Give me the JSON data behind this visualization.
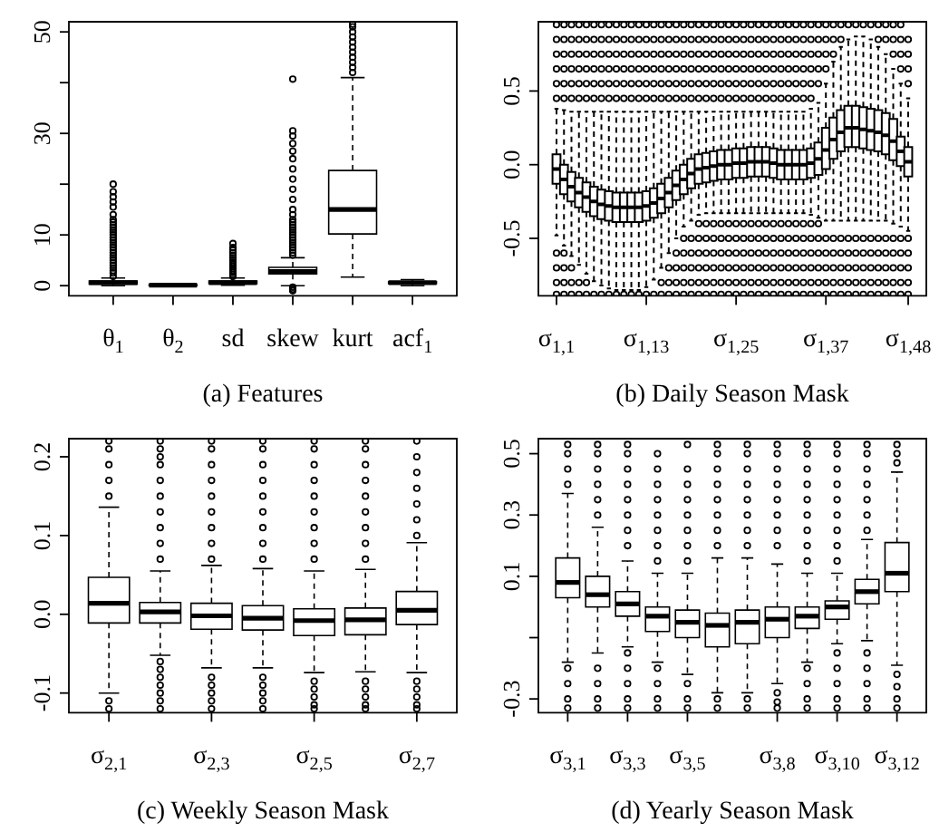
{
  "chart_data": [
    {
      "type": "box",
      "title": "(a) Features",
      "categories": [
        "θ$_{1}$",
        "θ$_{2}$",
        "sd",
        "skew",
        "kurt",
        "acf$_{1}$"
      ],
      "ylim": [
        -2,
        52
      ],
      "yticks": [
        0,
        10,
        {
          "value": 20,
          "label": null
        },
        30,
        {
          "value": 40,
          "label": null
        },
        50
      ],
      "boxes": [
        {
          "low": 0,
          "q1": 0.3,
          "median": 0.6,
          "q3": 0.9,
          "high": 1.5,
          "outliers": [
            1.8,
            2.5,
            3,
            3.5,
            4,
            4.5,
            5,
            5.5,
            6,
            6.5,
            7,
            7.5,
            8,
            8.5,
            9,
            9.5,
            10,
            10.5,
            11,
            11.5,
            12,
            12.5,
            13,
            14,
            15.5,
            16.5,
            17.5,
            18.5,
            20
          ]
        },
        {
          "low": 0,
          "q1": 0.05,
          "median": 0.1,
          "q3": 0.15,
          "high": 0.3
        },
        {
          "low": 0.1,
          "q1": 0.4,
          "median": 0.6,
          "q3": 0.9,
          "high": 1.5,
          "outliers": [
            1.8,
            2.2,
            2.6,
            3,
            3.4,
            3.8,
            4.2,
            4.6,
            5,
            5.5,
            6,
            6.5,
            7,
            7.5,
            8.3
          ]
        },
        {
          "low": 0,
          "q1": 2.3,
          "median": 2.8,
          "q3": 3.6,
          "high": 5.5,
          "outliers": [
            -0.3,
            -0.7,
            -1,
            6,
            6.5,
            7,
            7.5,
            8,
            8.5,
            9,
            9.5,
            10,
            10.5,
            11,
            11.5,
            12,
            12.5,
            13,
            14,
            15,
            17,
            19,
            21,
            23,
            25,
            26.5,
            28,
            29.5,
            30.5,
            40.7
          ]
        },
        {
          "low": 1.7,
          "q1": 10.2,
          "median": 15,
          "q3": 22.7,
          "high": 41,
          "outliers": [
            42,
            43,
            44,
            45,
            46,
            47,
            48,
            49,
            50,
            51,
            51.5
          ]
        },
        {
          "low": 0,
          "q1": 0.4,
          "median": 0.6,
          "q3": 0.8,
          "high": 1.2
        }
      ]
    },
    {
      "type": "box",
      "title": "(b) Daily Season Mask",
      "categories": [
        "σ$_{1,1}$",
        null,
        null,
        null,
        null,
        null,
        null,
        null,
        null,
        null,
        null,
        null,
        "σ$_{1,13}$",
        null,
        null,
        null,
        null,
        null,
        null,
        null,
        null,
        null,
        null,
        null,
        "σ$_{1,25}$",
        null,
        null,
        null,
        null,
        null,
        null,
        null,
        null,
        null,
        null,
        null,
        "σ$_{1,37}$",
        null,
        null,
        null,
        null,
        null,
        null,
        null,
        null,
        null,
        null,
        "σ$_{1,48}$"
      ],
      "ylim": [
        -0.89,
        0.97
      ],
      "yticks": [
        -0.5,
        {
          "value": 0,
          "label": "0.0"
        },
        0.5
      ],
      "boxes": [
        {
          "low": -0.48,
          "q1": -0.13,
          "median": -0.03,
          "q3": 0.07,
          "high": 0.38,
          "outliers": [
            0.45,
            0.55,
            0.65,
            0.75,
            0.85,
            0.95,
            -0.6,
            -0.7,
            -0.8,
            -0.88
          ]
        },
        {
          "low": -0.55,
          "q1": -0.2,
          "median": -0.1,
          "q3": 0,
          "high": 0.37,
          "outliers": [
            0.45,
            0.55,
            0.65,
            0.75,
            0.85,
            0.95,
            -0.6,
            -0.7,
            -0.8,
            -0.88
          ]
        },
        {
          "low": -0.62,
          "q1": -0.25,
          "median": -0.15,
          "q3": -0.05,
          "high": 0.36,
          "outliers": [
            0.45,
            0.55,
            0.65,
            0.75,
            0.85,
            0.95,
            -0.7,
            -0.8,
            -0.88
          ]
        },
        {
          "low": -0.68,
          "q1": -0.29,
          "median": -0.19,
          "q3": -0.09,
          "high": 0.36,
          "outliers": [
            0.45,
            0.55,
            0.65,
            0.75,
            0.85,
            0.95,
            -0.8,
            -0.88
          ]
        },
        {
          "low": -0.74,
          "q1": -0.32,
          "median": -0.22,
          "q3": -0.12,
          "high": 0.36,
          "outliers": [
            0.45,
            0.55,
            0.65,
            0.75,
            0.85,
            0.95,
            -0.8,
            -0.88
          ]
        },
        {
          "low": -0.79,
          "q1": -0.35,
          "median": -0.25,
          "q3": -0.15,
          "high": 0.36,
          "outliers": [
            0.45,
            0.55,
            0.65,
            0.75,
            0.85,
            0.95,
            -0.88
          ]
        },
        {
          "low": -0.82,
          "q1": -0.37,
          "median": -0.27,
          "q3": -0.17,
          "high": 0.36,
          "outliers": [
            0.45,
            0.55,
            0.65,
            0.75,
            0.85,
            0.95,
            -0.88
          ]
        },
        {
          "low": -0.84,
          "q1": -0.38,
          "median": -0.28,
          "q3": -0.18,
          "high": 0.36,
          "outliers": [
            0.45,
            0.55,
            0.65,
            0.75,
            0.85,
            0.95,
            -0.88
          ]
        },
        {
          "low": -0.85,
          "q1": -0.39,
          "median": -0.29,
          "q3": -0.19,
          "high": 0.36,
          "outliers": [
            0.45,
            0.55,
            0.65,
            0.75,
            0.85,
            0.95,
            -0.88
          ]
        },
        {
          "low": -0.85,
          "q1": -0.39,
          "median": -0.29,
          "q3": -0.19,
          "high": 0.36,
          "outliers": [
            0.45,
            0.55,
            0.65,
            0.75,
            0.85,
            0.95,
            -0.88
          ]
        },
        {
          "low": -0.85,
          "q1": -0.39,
          "median": -0.29,
          "q3": -0.19,
          "high": 0.36,
          "outliers": [
            0.45,
            0.55,
            0.65,
            0.75,
            0.85,
            0.95,
            -0.88
          ]
        },
        {
          "low": -0.85,
          "q1": -0.39,
          "median": -0.29,
          "q3": -0.19,
          "high": 0.36,
          "outliers": [
            0.45,
            0.55,
            0.65,
            0.75,
            0.85,
            0.95,
            -0.88
          ]
        },
        {
          "low": -0.83,
          "q1": -0.38,
          "median": -0.28,
          "q3": -0.18,
          "high": 0.36,
          "outliers": [
            0.45,
            0.55,
            0.65,
            0.75,
            0.85,
            0.95,
            -0.88
          ]
        },
        {
          "low": -0.78,
          "q1": -0.36,
          "median": -0.26,
          "q3": -0.16,
          "high": 0.36,
          "outliers": [
            0.45,
            0.55,
            0.65,
            0.75,
            0.85,
            0.95,
            -0.88
          ]
        },
        {
          "low": -0.7,
          "q1": -0.33,
          "median": -0.23,
          "q3": -0.13,
          "high": 0.36,
          "outliers": [
            0.45,
            0.55,
            0.65,
            0.75,
            0.85,
            0.95,
            -0.8,
            -0.88
          ]
        },
        {
          "low": -0.6,
          "q1": -0.29,
          "median": -0.19,
          "q3": -0.09,
          "high": 0.36,
          "outliers": [
            0.45,
            0.55,
            0.65,
            0.75,
            0.85,
            0.95,
            -0.7,
            -0.8,
            -0.88
          ]
        },
        {
          "low": -0.5,
          "q1": -0.24,
          "median": -0.14,
          "q3": -0.04,
          "high": 0.36,
          "outliers": [
            0.45,
            0.55,
            0.65,
            0.75,
            0.85,
            0.95,
            -0.6,
            -0.7,
            -0.8,
            -0.88
          ]
        },
        {
          "low": -0.42,
          "q1": -0.2,
          "median": -0.1,
          "q3": 0,
          "high": 0.36,
          "outliers": [
            0.45,
            0.55,
            0.65,
            0.75,
            0.85,
            0.95,
            -0.5,
            -0.6,
            -0.7,
            -0.8,
            -0.88
          ]
        },
        {
          "low": -0.38,
          "q1": -0.16,
          "median": -0.06,
          "q3": 0.04,
          "high": 0.36,
          "outliers": [
            0.45,
            0.55,
            0.65,
            0.75,
            0.85,
            0.95,
            -0.5,
            -0.6,
            -0.7,
            -0.8,
            -0.88
          ]
        },
        {
          "low": -0.34,
          "q1": -0.13,
          "median": -0.03,
          "q3": 0.07,
          "high": 0.36,
          "outliers": [
            0.45,
            0.55,
            0.65,
            0.75,
            0.85,
            0.95,
            -0.4,
            -0.5,
            -0.6,
            -0.7,
            -0.8,
            -0.88
          ]
        },
        {
          "low": -0.33,
          "q1": -0.12,
          "median": -0.02,
          "q3": 0.08,
          "high": 0.36,
          "outliers": [
            0.45,
            0.55,
            0.65,
            0.75,
            0.85,
            0.95,
            -0.4,
            -0.5,
            -0.6,
            -0.7,
            -0.8,
            -0.88
          ]
        },
        {
          "low": -0.33,
          "q1": -0.11,
          "median": -0.01,
          "q3": 0.09,
          "high": 0.36,
          "outliers": [
            0.45,
            0.55,
            0.65,
            0.75,
            0.85,
            0.95,
            -0.4,
            -0.5,
            -0.6,
            -0.7,
            -0.8,
            -0.88
          ]
        },
        {
          "low": -0.33,
          "q1": -0.1,
          "median": 0,
          "q3": 0.1,
          "high": 0.36,
          "outliers": [
            0.45,
            0.55,
            0.65,
            0.75,
            0.85,
            0.95,
            -0.4,
            -0.5,
            -0.6,
            -0.7,
            -0.8,
            -0.88
          ]
        },
        {
          "low": -0.33,
          "q1": -0.1,
          "median": 0,
          "q3": 0.1,
          "high": 0.36,
          "outliers": [
            0.45,
            0.55,
            0.65,
            0.75,
            0.85,
            0.95,
            -0.4,
            -0.5,
            -0.6,
            -0.7,
            -0.8,
            -0.88
          ]
        },
        {
          "low": -0.33,
          "q1": -0.09,
          "median": 0.01,
          "q3": 0.11,
          "high": 0.36,
          "outliers": [
            0.45,
            0.55,
            0.65,
            0.75,
            0.85,
            0.95,
            -0.4,
            -0.5,
            -0.6,
            -0.7,
            -0.8,
            -0.88
          ]
        },
        {
          "low": -0.33,
          "q1": -0.09,
          "median": 0.01,
          "q3": 0.11,
          "high": 0.36,
          "outliers": [
            0.45,
            0.55,
            0.65,
            0.75,
            0.85,
            0.95,
            -0.4,
            -0.5,
            -0.6,
            -0.7,
            -0.8,
            -0.88
          ]
        },
        {
          "low": -0.33,
          "q1": -0.08,
          "median": 0.02,
          "q3": 0.12,
          "high": 0.36,
          "outliers": [
            0.45,
            0.55,
            0.65,
            0.75,
            0.85,
            0.95,
            -0.4,
            -0.5,
            -0.6,
            -0.7,
            -0.8,
            -0.88
          ]
        },
        {
          "low": -0.33,
          "q1": -0.08,
          "median": 0.02,
          "q3": 0.12,
          "high": 0.36,
          "outliers": [
            0.45,
            0.55,
            0.65,
            0.75,
            0.85,
            0.95,
            -0.4,
            -0.5,
            -0.6,
            -0.7,
            -0.8,
            -0.88
          ]
        },
        {
          "low": -0.33,
          "q1": -0.08,
          "median": 0.02,
          "q3": 0.12,
          "high": 0.36,
          "outliers": [
            0.45,
            0.55,
            0.65,
            0.75,
            0.85,
            0.95,
            -0.4,
            -0.5,
            -0.6,
            -0.7,
            -0.8,
            -0.88
          ]
        },
        {
          "low": -0.33,
          "q1": -0.09,
          "median": 0.01,
          "q3": 0.11,
          "high": 0.36,
          "outliers": [
            0.45,
            0.55,
            0.65,
            0.75,
            0.85,
            0.95,
            -0.4,
            -0.5,
            -0.6,
            -0.7,
            -0.8,
            -0.88
          ]
        },
        {
          "low": -0.33,
          "q1": -0.1,
          "median": 0,
          "q3": 0.1,
          "high": 0.36,
          "outliers": [
            0.45,
            0.55,
            0.65,
            0.75,
            0.85,
            0.95,
            -0.4,
            -0.5,
            -0.6,
            -0.7,
            -0.8,
            -0.88
          ]
        },
        {
          "low": -0.33,
          "q1": -0.1,
          "median": 0,
          "q3": 0.1,
          "high": 0.36,
          "outliers": [
            0.45,
            0.55,
            0.65,
            0.75,
            0.85,
            0.95,
            -0.4,
            -0.5,
            -0.6,
            -0.7,
            -0.8,
            -0.88
          ]
        },
        {
          "low": -0.33,
          "q1": -0.1,
          "median": 0,
          "q3": 0.1,
          "high": 0.36,
          "outliers": [
            0.45,
            0.55,
            0.65,
            0.75,
            0.85,
            0.95,
            -0.4,
            -0.5,
            -0.6,
            -0.7,
            -0.8,
            -0.88
          ]
        },
        {
          "low": -0.33,
          "q1": -0.1,
          "median": 0,
          "q3": 0.1,
          "high": 0.36,
          "outliers": [
            0.45,
            0.55,
            0.65,
            0.75,
            0.85,
            0.95,
            -0.4,
            -0.5,
            -0.6,
            -0.7,
            -0.8,
            -0.88
          ]
        },
        {
          "low": -0.34,
          "q1": -0.09,
          "median": 0.01,
          "q3": 0.11,
          "high": 0.38,
          "outliers": [
            0.45,
            0.55,
            0.65,
            0.75,
            0.85,
            0.95,
            -0.4,
            -0.5,
            -0.6,
            -0.7,
            -0.8,
            -0.88
          ]
        },
        {
          "low": -0.36,
          "q1": -0.07,
          "median": 0.04,
          "q3": 0.15,
          "high": 0.42,
          "outliers": [
            0.55,
            0.65,
            0.75,
            0.85,
            0.95,
            -0.4,
            -0.5,
            -0.6,
            -0.7,
            -0.8,
            -0.88
          ]
        },
        {
          "low": -0.38,
          "q1": -0.03,
          "median": 0.1,
          "q3": 0.25,
          "high": 0.55,
          "outliers": [
            0.65,
            0.75,
            0.85,
            0.95,
            -0.5,
            -0.6,
            -0.7,
            -0.8,
            -0.88
          ]
        },
        {
          "low": -0.38,
          "q1": 0.04,
          "median": 0.17,
          "q3": 0.32,
          "high": 0.7,
          "outliers": [
            0.75,
            0.85,
            0.95,
            -0.5,
            -0.6,
            -0.7,
            -0.8,
            -0.88
          ]
        },
        {
          "low": -0.38,
          "q1": 0.09,
          "median": 0.22,
          "q3": 0.37,
          "high": 0.8,
          "outliers": [
            0.85,
            0.95,
            -0.5,
            -0.6,
            -0.7,
            -0.8,
            -0.88
          ]
        },
        {
          "low": -0.38,
          "q1": 0.12,
          "median": 0.25,
          "q3": 0.4,
          "high": 0.85,
          "outliers": [
            0.95,
            -0.5,
            -0.6,
            -0.7,
            -0.8,
            -0.88
          ]
        },
        {
          "low": -0.38,
          "q1": 0.12,
          "median": 0.25,
          "q3": 0.4,
          "high": 0.87,
          "outliers": [
            0.95,
            -0.5,
            -0.6,
            -0.7,
            -0.8,
            -0.88
          ]
        },
        {
          "low": -0.38,
          "q1": 0.11,
          "median": 0.24,
          "q3": 0.39,
          "high": 0.87,
          "outliers": [
            0.95,
            -0.5,
            -0.6,
            -0.7,
            -0.8,
            -0.88
          ]
        },
        {
          "low": -0.38,
          "q1": 0.1,
          "median": 0.23,
          "q3": 0.38,
          "high": 0.85,
          "outliers": [
            0.95,
            -0.5,
            -0.6,
            -0.7,
            -0.8,
            -0.88
          ]
        },
        {
          "low": -0.38,
          "q1": 0.09,
          "median": 0.22,
          "q3": 0.37,
          "high": 0.8,
          "outliers": [
            0.85,
            0.95,
            -0.5,
            -0.6,
            -0.7,
            -0.8,
            -0.88
          ]
        },
        {
          "low": -0.38,
          "q1": 0.07,
          "median": 0.2,
          "q3": 0.35,
          "high": 0.75,
          "outliers": [
            0.85,
            0.95,
            -0.5,
            -0.6,
            -0.7,
            -0.8,
            -0.88
          ]
        },
        {
          "low": -0.4,
          "q1": 0.03,
          "median": 0.16,
          "q3": 0.31,
          "high": 0.65,
          "outliers": [
            0.75,
            0.85,
            0.95,
            -0.5,
            -0.6,
            -0.7,
            -0.8,
            -0.88
          ]
        },
        {
          "low": -0.42,
          "q1": -0.01,
          "median": 0.09,
          "q3": 0.19,
          "high": 0.55,
          "outliers": [
            0.65,
            0.75,
            0.85,
            0.95,
            -0.5,
            -0.6,
            -0.7,
            -0.8,
            -0.88
          ]
        },
        {
          "low": -0.45,
          "q1": -0.08,
          "median": 0.02,
          "q3": 0.12,
          "high": 0.45,
          "outliers": [
            0.55,
            0.65,
            0.75,
            0.85,
            -0.5,
            -0.6,
            -0.7,
            -0.8,
            -0.88
          ]
        }
      ]
    },
    {
      "type": "box",
      "title": "(c) Weekly Season Mask",
      "categories": [
        "σ$_{2,1}$",
        null,
        "σ$_{2,3}$",
        null,
        "σ$_{2,5}$",
        null,
        "σ$_{2,7}$"
      ],
      "ylim": [
        -0.125,
        0.223
      ],
      "yticks": [
        -0.1,
        {
          "value": 0,
          "label": "0.0"
        },
        0.1,
        0.2
      ],
      "boxes": [
        {
          "low": -0.1,
          "q1": -0.011,
          "median": 0.014,
          "q3": 0.047,
          "high": 0.136,
          "outliers": [
            0.15,
            0.17,
            0.19,
            0.21,
            0.22,
            -0.11,
            -0.12
          ]
        },
        {
          "low": -0.052,
          "q1": -0.011,
          "median": 0.003,
          "q3": 0.015,
          "high": 0.055,
          "outliers": [
            0.07,
            0.09,
            0.11,
            0.13,
            0.15,
            0.17,
            0.19,
            0.2,
            0.21,
            0.22,
            -0.06,
            -0.07,
            -0.08,
            -0.09,
            -0.1,
            -0.11,
            -0.12
          ]
        },
        {
          "low": -0.068,
          "q1": -0.019,
          "median": -0.002,
          "q3": 0.014,
          "high": 0.062,
          "outliers": [
            0.07,
            0.09,
            0.11,
            0.13,
            0.15,
            0.17,
            0.19,
            0.21,
            0.22,
            -0.08,
            -0.09,
            -0.1,
            -0.11,
            -0.12
          ]
        },
        {
          "low": -0.068,
          "q1": -0.02,
          "median": -0.005,
          "q3": 0.011,
          "high": 0.058,
          "outliers": [
            0.07,
            0.09,
            0.11,
            0.13,
            0.15,
            0.17,
            0.19,
            0.21,
            0.22,
            -0.08,
            -0.09,
            -0.1,
            -0.11,
            -0.12
          ]
        },
        {
          "low": -0.074,
          "q1": -0.027,
          "median": -0.008,
          "q3": 0.007,
          "high": 0.055,
          "outliers": [
            0.07,
            0.09,
            0.11,
            0.13,
            0.15,
            0.17,
            0.19,
            0.21,
            0.22,
            -0.085,
            -0.095,
            -0.105,
            -0.115,
            -0.12
          ]
        },
        {
          "low": -0.073,
          "q1": -0.026,
          "median": -0.007,
          "q3": 0.008,
          "high": 0.057,
          "outliers": [
            0.07,
            0.09,
            0.11,
            0.13,
            0.15,
            0.17,
            0.19,
            0.21,
            0.22,
            -0.085,
            -0.095,
            -0.105,
            -0.115,
            -0.12
          ]
        },
        {
          "low": -0.074,
          "q1": -0.013,
          "median": 0.005,
          "q3": 0.029,
          "high": 0.091,
          "outliers": [
            0.1,
            0.12,
            0.14,
            0.16,
            0.18,
            0.2,
            0.22,
            -0.085,
            -0.095,
            -0.105,
            -0.115,
            -0.12
          ]
        }
      ]
    },
    {
      "type": "box",
      "title": "(d) Yearly Season Mask",
      "categories": [
        "σ$_{3,1}$",
        null,
        "σ$_{3,3}$",
        null,
        "σ$_{3,5}$",
        null,
        null,
        "σ$_{3,8}$",
        null,
        "σ$_{3,10}$",
        null,
        "σ$_{3,12}$"
      ],
      "ylim": [
        -0.345,
        0.549
      ],
      "yticks": [
        -0.3,
        {
          "value": -0.1,
          "label": null
        },
        0.1,
        0.3,
        0.5
      ],
      "boxes": [
        {
          "low": -0.18,
          "q1": 0.03,
          "median": 0.08,
          "q3": 0.16,
          "high": 0.37,
          "outliers": [
            0.4,
            0.45,
            0.5,
            0.53,
            -0.2,
            -0.25,
            -0.3,
            -0.33
          ]
        },
        {
          "low": -0.15,
          "q1": 0,
          "median": 0.04,
          "q3": 0.1,
          "high": 0.26,
          "outliers": [
            0.3,
            0.35,
            0.4,
            0.45,
            0.5,
            0.53,
            -0.2,
            -0.25,
            -0.3,
            -0.33
          ]
        },
        {
          "low": -0.13,
          "q1": -0.03,
          "median": 0.01,
          "q3": 0.05,
          "high": 0.15,
          "outliers": [
            0.2,
            0.25,
            0.3,
            0.35,
            0.4,
            0.45,
            0.5,
            0.53,
            -0.15,
            -0.2,
            -0.25,
            -0.3,
            -0.33
          ]
        },
        {
          "low": -0.18,
          "q1": -0.08,
          "median": -0.03,
          "q3": 0,
          "high": 0.11,
          "outliers": [
            0.15,
            0.2,
            0.25,
            0.3,
            0.35,
            0.4,
            0.45,
            0.5,
            -0.2,
            -0.25,
            -0.3,
            -0.33
          ]
        },
        {
          "low": -0.22,
          "q1": -0.1,
          "median": -0.05,
          "q3": -0.01,
          "high": 0.11,
          "outliers": [
            0.15,
            0.2,
            0.25,
            0.3,
            0.35,
            0.4,
            0.45,
            0.53,
            -0.25,
            -0.3,
            -0.33
          ]
        },
        {
          "low": -0.28,
          "q1": -0.13,
          "median": -0.06,
          "q3": -0.02,
          "high": 0.16,
          "outliers": [
            0.2,
            0.25,
            0.3,
            0.35,
            0.4,
            0.45,
            0.5,
            0.53,
            -0.3,
            -0.33
          ]
        },
        {
          "low": -0.28,
          "q1": -0.12,
          "median": -0.05,
          "q3": -0.01,
          "high": 0.16,
          "outliers": [
            0.2,
            0.25,
            0.3,
            0.35,
            0.4,
            0.45,
            0.5,
            0.53,
            -0.3,
            -0.33
          ]
        },
        {
          "low": -0.25,
          "q1": -0.1,
          "median": -0.04,
          "q3": 0,
          "high": 0.14,
          "outliers": [
            0.2,
            0.25,
            0.3,
            0.35,
            0.4,
            0.45,
            0.5,
            0.53,
            -0.28,
            -0.31,
            -0.33
          ]
        },
        {
          "low": -0.18,
          "q1": -0.07,
          "median": -0.03,
          "q3": 0,
          "high": 0.11,
          "outliers": [
            0.15,
            0.2,
            0.25,
            0.3,
            0.35,
            0.4,
            0.45,
            0.5,
            0.53,
            -0.2,
            -0.25,
            -0.3,
            -0.33
          ]
        },
        {
          "low": -0.12,
          "q1": -0.04,
          "median": 0,
          "q3": 0.02,
          "high": 0.11,
          "outliers": [
            0.15,
            0.2,
            0.25,
            0.3,
            0.35,
            0.4,
            0.45,
            0.5,
            0.53,
            -0.15,
            -0.2,
            -0.25,
            -0.3,
            -0.33
          ]
        },
        {
          "low": -0.11,
          "q1": 0.01,
          "median": 0.05,
          "q3": 0.09,
          "high": 0.22,
          "outliers": [
            0.25,
            0.3,
            0.35,
            0.4,
            0.45,
            0.5,
            0.53,
            -0.15,
            -0.2,
            -0.25,
            -0.3,
            -0.33
          ]
        },
        {
          "low": -0.19,
          "q1": 0.05,
          "median": 0.11,
          "q3": 0.21,
          "high": 0.44,
          "outliers": [
            0.47,
            0.5,
            0.53,
            -0.22,
            -0.26,
            -0.3,
            -0.33
          ]
        }
      ]
    }
  ]
}
